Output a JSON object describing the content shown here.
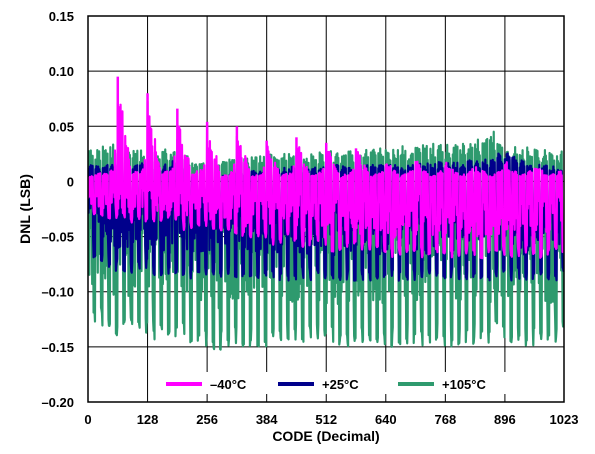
{
  "chart_data": {
    "type": "line",
    "title": "",
    "xlabel": "CODE (Decimal)",
    "ylabel": "DNL (LSB)",
    "xlim": [
      0,
      1023
    ],
    "ylim": [
      -0.2,
      0.15
    ],
    "xticks": [
      0,
      128,
      256,
      384,
      512,
      640,
      768,
      896,
      1023
    ],
    "xtick_labels": [
      "0",
      "128",
      "256",
      "384",
      "512",
      "640",
      "768",
      "896",
      "1023"
    ],
    "yticks": [
      0.15,
      0.1,
      0.05,
      0,
      -0.05,
      -0.1,
      -0.15,
      -0.2
    ],
    "ytick_labels": [
      "0.15",
      "0.10",
      "0.05",
      "0",
      "–0.05",
      "–0.10",
      "–0.15",
      "–0.20"
    ],
    "grid": true,
    "legend_position": "bottom-center",
    "series": [
      {
        "name": "–40°C",
        "color": "#ff00ff",
        "x": [
          0,
          16,
          32,
          48,
          56,
          64,
          80,
          96,
          112,
          120,
          128,
          144,
          160,
          176,
          184,
          192,
          208,
          224,
          240,
          248,
          256,
          272,
          288,
          304,
          312,
          320,
          336,
          352,
          368,
          376,
          384,
          400,
          416,
          432,
          440,
          448,
          464,
          480,
          496,
          504,
          512,
          528,
          544,
          560,
          568,
          576,
          592,
          608,
          624,
          632,
          640,
          656,
          672,
          688,
          696,
          704,
          720,
          736,
          752,
          760,
          768,
          784,
          800,
          816,
          824,
          832,
          848,
          864,
          880,
          888,
          896,
          912,
          928,
          944,
          952,
          960,
          976,
          992,
          1008,
          1016,
          1023
        ],
        "y": [
          0.005,
          -0.03,
          0.008,
          -0.035,
          0.012,
          0.095,
          -0.04,
          0.008,
          -0.035,
          0.012,
          0.08,
          -0.04,
          0.008,
          -0.035,
          0.012,
          0.066,
          -0.045,
          0.008,
          -0.04,
          0.012,
          0.054,
          -0.05,
          0.005,
          -0.045,
          0.01,
          0.05,
          -0.055,
          0.005,
          -0.05,
          0.01,
          0.037,
          -0.06,
          0.005,
          -0.05,
          0.01,
          0.04,
          -0.06,
          0.005,
          -0.055,
          0.01,
          0.035,
          -0.065,
          0.005,
          -0.06,
          0.01,
          0.03,
          -0.065,
          0.005,
          -0.06,
          0.01,
          0.02,
          -0.07,
          0.005,
          -0.065,
          0.01,
          0.02,
          -0.07,
          0.005,
          -0.065,
          0.01,
          0.018,
          -0.07,
          0.005,
          -0.065,
          0.01,
          0.015,
          -0.07,
          0.005,
          -0.065,
          0.01,
          0.02,
          -0.07,
          0.005,
          -0.065,
          0.01,
          0.015,
          -0.07,
          0.005,
          -0.065,
          0.01,
          0.0
        ]
      },
      {
        "name": "+25°C",
        "color": "#00008b",
        "x": [
          0,
          16,
          32,
          48,
          64,
          80,
          96,
          112,
          128,
          144,
          160,
          176,
          192,
          208,
          224,
          240,
          256,
          272,
          288,
          304,
          320,
          336,
          352,
          368,
          384,
          400,
          416,
          432,
          448,
          464,
          480,
          496,
          512,
          528,
          544,
          560,
          576,
          592,
          608,
          624,
          640,
          656,
          672,
          688,
          704,
          720,
          736,
          752,
          768,
          784,
          800,
          816,
          832,
          848,
          864,
          880,
          896,
          912,
          928,
          944,
          960,
          976,
          992,
          1008,
          1023
        ],
        "y": [
          0.015,
          -0.07,
          0.015,
          -0.08,
          0.02,
          -0.085,
          0.015,
          -0.08,
          0.02,
          -0.085,
          0.015,
          -0.085,
          0.02,
          -0.09,
          0.005,
          -0.085,
          0.0,
          -0.09,
          0.005,
          -0.085,
          0.01,
          -0.09,
          0.01,
          -0.09,
          0.012,
          -0.09,
          0.012,
          -0.09,
          0.015,
          -0.09,
          0.012,
          -0.09,
          0.015,
          -0.09,
          0.015,
          -0.09,
          0.015,
          -0.09,
          0.015,
          -0.09,
          0.015,
          -0.09,
          0.015,
          -0.09,
          0.015,
          -0.09,
          0.018,
          -0.09,
          0.018,
          -0.09,
          0.018,
          -0.09,
          0.02,
          -0.09,
          0.02,
          -0.09,
          0.03,
          -0.09,
          0.02,
          -0.09,
          0.015,
          -0.09,
          0.015,
          -0.09,
          0.01
        ]
      },
      {
        "name": "+105°C",
        "color": "#2e9a6e",
        "x": [
          0,
          16,
          32,
          48,
          64,
          80,
          96,
          112,
          128,
          144,
          160,
          176,
          192,
          208,
          224,
          240,
          256,
          272,
          288,
          304,
          320,
          336,
          352,
          368,
          384,
          400,
          416,
          432,
          448,
          464,
          480,
          496,
          512,
          528,
          544,
          560,
          576,
          592,
          608,
          624,
          640,
          656,
          672,
          688,
          704,
          720,
          736,
          752,
          768,
          784,
          800,
          816,
          832,
          848,
          864,
          880,
          896,
          912,
          928,
          944,
          960,
          976,
          992,
          1008,
          1023
        ],
        "y": [
          0.03,
          -0.13,
          0.032,
          -0.14,
          0.035,
          -0.145,
          0.03,
          -0.14,
          0.032,
          -0.145,
          0.03,
          -0.14,
          0.03,
          -0.145,
          0.02,
          -0.15,
          0.018,
          -0.155,
          0.02,
          -0.15,
          0.02,
          -0.15,
          0.022,
          -0.15,
          0.025,
          -0.15,
          0.025,
          -0.148,
          0.025,
          -0.15,
          0.025,
          -0.15,
          0.028,
          -0.15,
          0.028,
          -0.15,
          0.028,
          -0.148,
          0.03,
          -0.15,
          0.03,
          -0.15,
          0.032,
          -0.148,
          0.032,
          -0.15,
          0.035,
          -0.148,
          0.035,
          -0.15,
          0.035,
          -0.148,
          0.038,
          -0.15,
          0.05,
          -0.145,
          0.035,
          -0.148,
          0.032,
          -0.15,
          0.03,
          -0.15,
          0.028,
          -0.145,
          0.028
        ]
      }
    ]
  }
}
